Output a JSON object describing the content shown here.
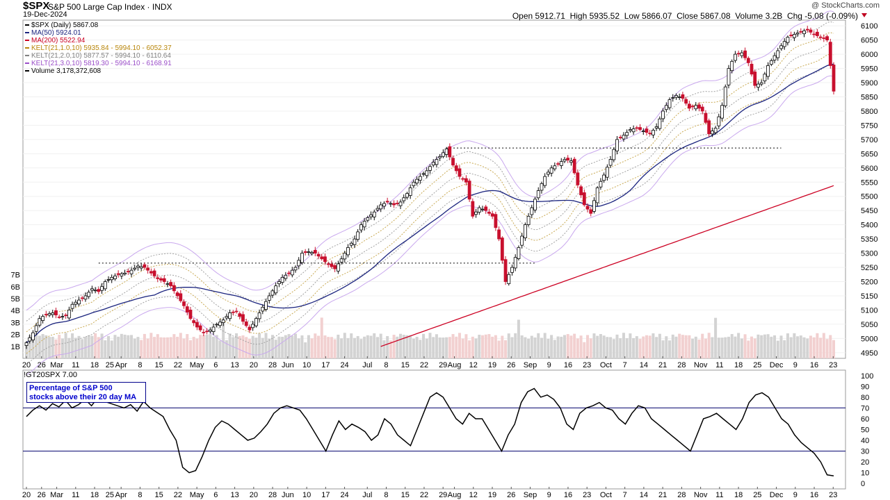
{
  "header": {
    "symbol": "$SPX",
    "name": "S&P 500 Large Cap Index · INDX",
    "date": "19-Dec-2024",
    "credit": "@ StockCharts.com",
    "open_label": "Open",
    "open": "5912.71",
    "high_label": "High",
    "high": "5935.52",
    "low_label": "Low",
    "low": "5866.07",
    "close_label": "Close",
    "close": "5867.08",
    "volume_label": "Volume",
    "volume": "3.2B",
    "chg_label": "Chg",
    "chg": "-5.08 (-0.09%)"
  },
  "legend": [
    {
      "text": "$SPX (Daily) 5867.08",
      "color": "#000000",
      "icon": "candle-icon"
    },
    {
      "text": "MA(50) 5924.01",
      "color": "#1a237e",
      "icon": "line-swatch-icon"
    },
    {
      "text": "MA(200) 5522.94",
      "color": "#cc0022",
      "icon": "line-swatch-icon"
    },
    {
      "text": "KELT(21,1.0,10) 5935.84 - 5994.10 - 6052.37",
      "color": "#b8860b",
      "icon": "line-swatch-icon"
    },
    {
      "text": "KELT(21,2.0,10) 5877.57 - 5994.10 - 6110.64",
      "color": "#808080",
      "icon": "line-swatch-icon"
    },
    {
      "text": "KELT(21,3.0,10) 5819.30 - 5994.10 - 6168.91",
      "color": "#9a4dc8",
      "icon": "line-swatch-icon"
    },
    {
      "text": "Volume 3,178,372,608",
      "color": "#000000",
      "icon": "volume-swatch-icon"
    }
  ],
  "indicator": {
    "title": "!GT20SPX 7.00",
    "box_line1": "Percentage of S&P 500",
    "box_line2": "stocks above their 20 day MA"
  },
  "colors": {
    "up": "#000000",
    "down": "#c8102e",
    "ma50": "#1a237e",
    "ma200": "#cc0022",
    "kelt1": "#c8a850",
    "kelt2": "#a0a0a0",
    "kelt3": "#c9a8ee",
    "volume": "#d3d3d3",
    "volume_down": "#f2d0d0"
  },
  "chart_data": [
    {
      "type": "candlestick",
      "title": "$SPX (Daily)",
      "ylim": [
        4930,
        6120
      ],
      "yticks": [
        4950,
        5000,
        5050,
        5100,
        5150,
        5200,
        5250,
        5300,
        5350,
        5400,
        5450,
        5500,
        5550,
        5600,
        5650,
        5700,
        5750,
        5800,
        5850,
        5900,
        5950,
        6000,
        6050,
        6100
      ],
      "volume_ylim": [
        0,
        8
      ],
      "volume_ticks": [
        "1B",
        "2B",
        "3B",
        "4B",
        "5B",
        "6B",
        "7B"
      ],
      "x_ticks": [
        "20",
        "26",
        "Mar",
        "11",
        "18",
        "25",
        "Apr",
        "8",
        "15",
        "22",
        "May",
        "6",
        "13",
        "20",
        "28",
        "Jun",
        "10",
        "17",
        "24",
        "Jul",
        "8",
        "15",
        "22",
        "29",
        "Aug",
        "12",
        "19",
        "26",
        "Sep",
        "9",
        "16",
        "23",
        "Oct",
        "7",
        "14",
        "21",
        "28",
        "Nov",
        "11",
        "18",
        "25",
        "Dec",
        "9",
        "16",
        "23"
      ],
      "support_lines": [
        5265,
        5670
      ],
      "close_path": [
        [
          0,
          4985
        ],
        [
          2,
          5020
        ],
        [
          4,
          5070
        ],
        [
          6,
          5085
        ],
        [
          8,
          5090
        ],
        [
          10,
          5075
        ],
        [
          12,
          5080
        ],
        [
          14,
          5120
        ],
        [
          16,
          5135
        ],
        [
          18,
          5150
        ],
        [
          20,
          5175
        ],
        [
          22,
          5165
        ],
        [
          24,
          5200
        ],
        [
          26,
          5215
        ],
        [
          28,
          5225
        ],
        [
          30,
          5230
        ],
        [
          32,
          5240
        ],
        [
          34,
          5255
        ],
        [
          36,
          5250
        ],
        [
          38,
          5230
        ],
        [
          40,
          5210
        ],
        [
          42,
          5200
        ],
        [
          44,
          5185
        ],
        [
          46,
          5150
        ],
        [
          48,
          5115
        ],
        [
          50,
          5070
        ],
        [
          52,
          5040
        ],
        [
          54,
          5020
        ],
        [
          56,
          5030
        ],
        [
          58,
          5050
        ],
        [
          60,
          5065
        ],
        [
          62,
          5090
        ],
        [
          64,
          5095
        ],
        [
          66,
          5060
        ],
        [
          68,
          5030
        ],
        [
          70,
          5070
        ],
        [
          72,
          5110
        ],
        [
          74,
          5150
        ],
        [
          76,
          5185
        ],
        [
          78,
          5215
        ],
        [
          80,
          5230
        ],
        [
          82,
          5250
        ],
        [
          84,
          5300
        ],
        [
          86,
          5305
        ],
        [
          88,
          5300
        ],
        [
          90,
          5280
        ],
        [
          92,
          5260
        ],
        [
          94,
          5245
        ],
        [
          96,
          5280
        ],
        [
          98,
          5320
        ],
        [
          100,
          5350
        ],
        [
          102,
          5400
        ],
        [
          104,
          5425
        ],
        [
          106,
          5445
        ],
        [
          108,
          5470
        ],
        [
          110,
          5480
        ],
        [
          112,
          5470
        ],
        [
          114,
          5480
        ],
        [
          116,
          5510
        ],
        [
          118,
          5550
        ],
        [
          120,
          5570
        ],
        [
          122,
          5590
        ],
        [
          124,
          5620
        ],
        [
          126,
          5640
        ],
        [
          128,
          5667
        ],
        [
          130,
          5610
        ],
        [
          132,
          5570
        ],
        [
          134,
          5550
        ],
        [
          136,
          5430
        ],
        [
          138,
          5460
        ],
        [
          140,
          5450
        ],
        [
          142,
          5430
        ],
        [
          144,
          5350
        ],
        [
          146,
          5200
        ],
        [
          148,
          5250
        ],
        [
          150,
          5320
        ],
        [
          152,
          5400
        ],
        [
          154,
          5460
        ],
        [
          156,
          5520
        ],
        [
          158,
          5570
        ],
        [
          160,
          5600
        ],
        [
          162,
          5615
        ],
        [
          164,
          5630
        ],
        [
          166,
          5625
        ],
        [
          168,
          5540
        ],
        [
          170,
          5470
        ],
        [
          172,
          5440
        ],
        [
          174,
          5530
        ],
        [
          176,
          5575
        ],
        [
          178,
          5630
        ],
        [
          180,
          5700
        ],
        [
          182,
          5715
        ],
        [
          184,
          5735
        ],
        [
          186,
          5740
        ],
        [
          188,
          5730
        ],
        [
          190,
          5720
        ],
        [
          192,
          5745
        ],
        [
          194,
          5800
        ],
        [
          196,
          5840
        ],
        [
          198,
          5855
        ],
        [
          200,
          5845
        ],
        [
          202,
          5810
        ],
        [
          204,
          5820
        ],
        [
          206,
          5800
        ],
        [
          208,
          5720
        ],
        [
          210,
          5740
        ],
        [
          212,
          5820
        ],
        [
          214,
          5950
        ],
        [
          216,
          6000
        ],
        [
          218,
          6005
        ],
        [
          220,
          5970
        ],
        [
          222,
          5890
        ],
        [
          224,
          5900
        ],
        [
          226,
          5960
        ],
        [
          228,
          5995
        ],
        [
          230,
          6030
        ],
        [
          232,
          6060
        ],
        [
          234,
          6070
        ],
        [
          236,
          6080
        ],
        [
          238,
          6085
        ],
        [
          240,
          6070
        ],
        [
          242,
          6060
        ],
        [
          244,
          6050
        ],
        [
          246,
          5870
        ]
      ]
    },
    {
      "type": "line",
      "title": "!GT20SPX",
      "ylim": [
        -5,
        105
      ],
      "yticks": [
        0,
        10,
        20,
        30,
        40,
        50,
        60,
        70,
        80,
        90,
        100
      ],
      "reference_lines": [
        70,
        30
      ],
      "x_ticks": [
        "20",
        "26",
        "Mar",
        "11",
        "18",
        "25",
        "Apr",
        "8",
        "15",
        "22",
        "May",
        "6",
        "13",
        "20",
        "28",
        "Jun",
        "10",
        "17",
        "24",
        "Jul",
        "8",
        "15",
        "22",
        "29",
        "Aug",
        "12",
        "19",
        "26",
        "Sep",
        "9",
        "16",
        "23",
        "Oct",
        "7",
        "14",
        "21",
        "28",
        "Nov",
        "11",
        "18",
        "25",
        "Dec",
        "9",
        "16",
        "23"
      ],
      "series": [
        {
          "values": [
            62,
            68,
            72,
            68,
            74,
            71,
            77,
            70,
            73,
            78,
            72,
            80,
            76,
            74,
            72,
            70,
            73,
            67,
            76,
            70,
            66,
            62,
            50,
            40,
            15,
            10,
            12,
            25,
            40,
            52,
            58,
            55,
            50,
            45,
            40,
            42,
            48,
            55,
            65,
            70,
            72,
            70,
            68,
            60,
            50,
            40,
            30,
            45,
            58,
            50,
            55,
            52,
            48,
            40,
            45,
            60,
            55,
            45,
            40,
            35,
            50,
            65,
            80,
            84,
            80,
            70,
            60,
            55,
            65,
            60,
            60,
            50,
            40,
            30,
            45,
            55,
            75,
            85,
            88,
            80,
            82,
            78,
            70,
            55,
            50,
            65,
            70,
            72,
            75,
            70,
            68,
            60,
            55,
            65,
            72,
            70,
            60,
            55,
            50,
            45,
            40,
            35,
            30,
            45,
            60,
            62,
            65,
            60,
            55,
            50,
            60,
            75,
            82,
            84,
            80,
            70,
            60,
            55,
            45,
            38,
            33,
            28,
            20,
            8,
            7
          ]
        }
      ]
    }
  ]
}
